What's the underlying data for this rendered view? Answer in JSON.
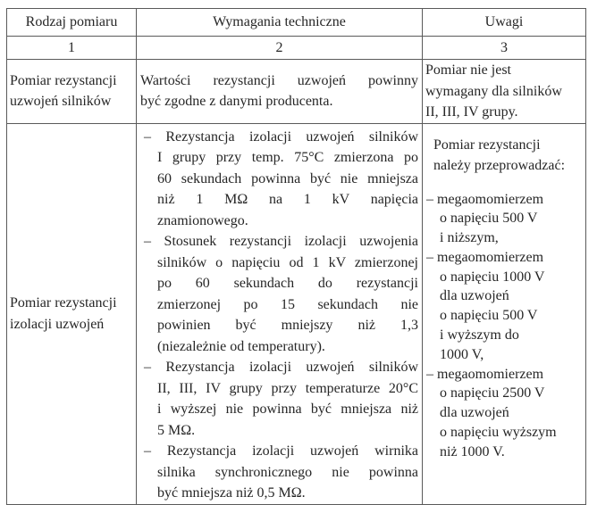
{
  "table": {
    "headers": [
      "Rodzaj pomiaru",
      "Wymagania techniczne",
      "Uwagi"
    ],
    "numbers": [
      "1",
      "2",
      "3"
    ],
    "row1": {
      "type_lines": [
        "Pomiar rezystancji",
        "uzwojeń silników"
      ],
      "requirements_lines": [
        "Wartości rezystancji uzwojeń powinny",
        "być zgodne z danymi producenta."
      ],
      "notes_lines": [
        "Pomiar nie jest",
        "wymagany dla silników",
        "II, III, IV grupy."
      ]
    },
    "row2": {
      "type_lines": [
        "Pomiar rezystancji",
        "izolacji uzwojeń"
      ],
      "requirements": [
        {
          "lines": [
            "– Rezystancja izolacji uzwojeń silników",
            "I grupy przy temp. 75°C zmierzona po",
            "60 sekundach powinna być nie mniejsza",
            "niż 1 MΩ na 1 kV napięcia",
            "znamionowego."
          ]
        },
        {
          "lines": [
            "– Stosunek rezystancji izolacji uzwojenia",
            "silników o napięciu od 1 kV zmierzonej",
            "po 60 sekundach do rezystancji",
            "zmierzonej po 15 sekundach nie",
            "powinien być mniejszy niż 1,3",
            "(niezależnie od temperatury)."
          ]
        },
        {
          "lines": [
            "– Rezystancja izolacji uzwojeń silników",
            "II, III, IV grupy przy temperaturze 20°C",
            "i wyższej nie powinna być mniejsza niż",
            "5 MΩ."
          ]
        },
        {
          "lines": [
            "– Rezystancja izolacji uzwojeń wirnika",
            "silnika synchronicznego nie powinna",
            "być mniejsza niż 0,5 MΩ."
          ]
        }
      ],
      "notes_intro": [
        "Pomiar rezystancji",
        "należy przeprowadzać:"
      ],
      "notes_items": [
        {
          "lines": [
            "– megaomomierzem",
            "o napięciu 500 V",
            "i niższym,"
          ]
        },
        {
          "lines": [
            "– megaomomierzem",
            "o napięciu 1000 V",
            "dla uzwojeń",
            "o napięciu 500 V",
            "i wyższym do",
            "1000 V,"
          ]
        },
        {
          "lines": [
            "– megaomomierzem",
            "o napięciu 2500 V",
            "dla uzwojeń",
            "o napięciu wyższym",
            "niż 1000 V."
          ]
        }
      ]
    }
  }
}
